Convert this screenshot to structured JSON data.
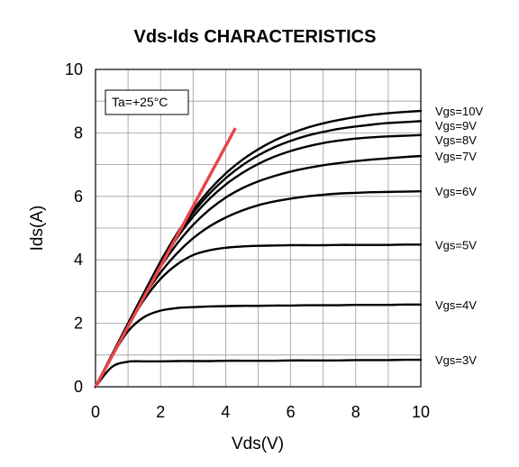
{
  "chart_data": {
    "type": "line",
    "title": "Vds-Ids CHARACTERISTICS",
    "xlabel": "Vds(V)",
    "ylabel": "Ids(A)",
    "xlim": [
      0,
      10
    ],
    "ylim": [
      0,
      10
    ],
    "x_ticks": [
      0,
      2,
      4,
      6,
      8,
      10
    ],
    "y_ticks": [
      0,
      2,
      4,
      6,
      8,
      10
    ],
    "grid": true,
    "annotation": "Ta=+25°C",
    "x": [
      0,
      0.5,
      1,
      1.5,
      2,
      2.5,
      3,
      3.5,
      4,
      4.5,
      5,
      5.5,
      6,
      6.5,
      7,
      7.5,
      8,
      8.5,
      9,
      9.5,
      10
    ],
    "series": [
      {
        "name": "Vgs=3V",
        "values": [
          0,
          0.62,
          0.79,
          0.8,
          0.8,
          0.81,
          0.81,
          0.81,
          0.82,
          0.82,
          0.82,
          0.82,
          0.83,
          0.83,
          0.83,
          0.83,
          0.84,
          0.84,
          0.84,
          0.85,
          0.85
        ]
      },
      {
        "name": "Vgs=4V",
        "values": [
          0,
          0.95,
          1.75,
          2.2,
          2.4,
          2.48,
          2.51,
          2.53,
          2.54,
          2.55,
          2.55,
          2.56,
          2.56,
          2.57,
          2.57,
          2.57,
          2.58,
          2.58,
          2.58,
          2.59,
          2.59
        ]
      },
      {
        "name": "Vgs=5V",
        "values": [
          0,
          0.97,
          1.92,
          2.75,
          3.4,
          3.85,
          4.15,
          4.3,
          4.38,
          4.42,
          4.44,
          4.45,
          4.46,
          4.46,
          4.46,
          4.47,
          4.47,
          4.47,
          4.47,
          4.48,
          4.48
        ]
      },
      {
        "name": "Vgs=6V",
        "values": [
          0,
          0.98,
          1.95,
          2.85,
          3.6,
          4.2,
          4.68,
          5.05,
          5.33,
          5.55,
          5.72,
          5.84,
          5.93,
          6.0,
          6.05,
          6.09,
          6.11,
          6.13,
          6.14,
          6.15,
          6.16
        ]
      },
      {
        "name": "Vgs=7V",
        "values": [
          0,
          0.99,
          1.97,
          2.92,
          3.78,
          4.5,
          5.1,
          5.58,
          5.96,
          6.25,
          6.47,
          6.64,
          6.78,
          6.89,
          6.98,
          7.05,
          7.11,
          7.16,
          7.2,
          7.24,
          7.27
        ]
      },
      {
        "name": "Vgs=8V",
        "values": [
          0,
          0.99,
          1.98,
          2.95,
          3.88,
          4.68,
          5.36,
          5.92,
          6.37,
          6.73,
          7.02,
          7.25,
          7.43,
          7.57,
          7.68,
          7.76,
          7.82,
          7.86,
          7.89,
          7.91,
          7.93
        ]
      },
      {
        "name": "Vgs=9V",
        "values": [
          0,
          1.0,
          1.99,
          2.97,
          3.92,
          4.76,
          5.48,
          6.08,
          6.57,
          6.97,
          7.29,
          7.55,
          7.75,
          7.91,
          8.03,
          8.13,
          8.2,
          8.26,
          8.31,
          8.34,
          8.37
        ]
      },
      {
        "name": "Vgs=10V",
        "values": [
          0,
          1.0,
          2.0,
          2.98,
          3.95,
          4.82,
          5.57,
          6.2,
          6.72,
          7.14,
          7.48,
          7.76,
          7.98,
          8.16,
          8.3,
          8.41,
          8.5,
          8.57,
          8.62,
          8.66,
          8.69
        ]
      }
    ],
    "reference_line": {
      "color": "#e8454a",
      "x": [
        0,
        4.3
      ],
      "y": [
        0,
        8.15
      ]
    },
    "line_color": "#000000"
  }
}
